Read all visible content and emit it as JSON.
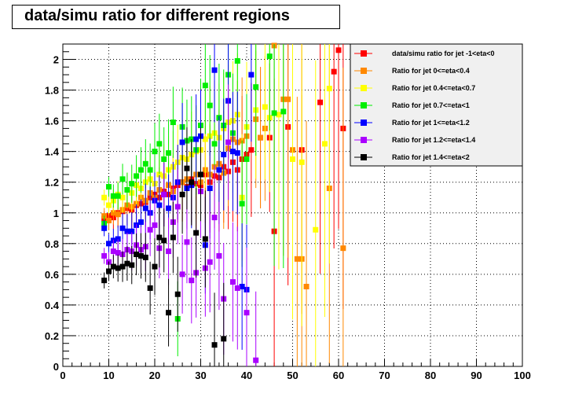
{
  "chart_data": {
    "type": "scatter",
    "title": "data/simu ratio for different regions",
    "xlabel": "",
    "ylabel": "",
    "xlim": [
      0,
      100
    ],
    "ylim": [
      0,
      2.1
    ],
    "x_ticks": [
      "0",
      "10",
      "20",
      "30",
      "40",
      "50",
      "60",
      "70",
      "80",
      "90",
      "100"
    ],
    "y_ticks": [
      "0",
      "0.2",
      "0.4",
      "0.6",
      "0.8",
      "1",
      "1.2",
      "1.4",
      "1.6",
      "1.8",
      "2"
    ],
    "grid": true,
    "legend_position": "top-right",
    "series": [
      {
        "name": "data/simu ratio for jet -1<eta<0",
        "color": "#ff0000",
        "points": [
          [
            9,
            0.96
          ],
          [
            10,
            0.98
          ],
          [
            11,
            0.97
          ],
          [
            12,
            1.0
          ],
          [
            13,
            1.01
          ],
          [
            14,
            1.03
          ],
          [
            15,
            1.02
          ],
          [
            16,
            1.05
          ],
          [
            17,
            1.06
          ],
          [
            18,
            1.07
          ],
          [
            19,
            1.1
          ],
          [
            20,
            1.12
          ],
          [
            21,
            1.1
          ],
          [
            22,
            1.14
          ],
          [
            23,
            1.12
          ],
          [
            24,
            1.16
          ],
          [
            25,
            1.18
          ],
          [
            26,
            1.2
          ],
          [
            27,
            1.17
          ],
          [
            28,
            1.22
          ],
          [
            29,
            1.19
          ],
          [
            30,
            1.18
          ],
          [
            31,
            1.25
          ],
          [
            32,
            1.2
          ],
          [
            33,
            1.24
          ],
          [
            34,
            1.23
          ],
          [
            35,
            1.3
          ],
          [
            36,
            1.27
          ],
          [
            37,
            1.33
          ],
          [
            38,
            1.28
          ],
          [
            39,
            1.35
          ],
          [
            40,
            1.38
          ],
          [
            41,
            1.41
          ],
          [
            43,
            1.49
          ],
          [
            45,
            1.49
          ],
          [
            46,
            0.88
          ],
          [
            49,
            1.56
          ],
          [
            52,
            1.41
          ],
          [
            56,
            1.72
          ],
          [
            59,
            1.92
          ],
          [
            60,
            2.06
          ],
          [
            61,
            1.55
          ]
        ]
      },
      {
        "name": "Ratio for jet 0<=eta<0.4",
        "color": "#ff8800",
        "points": [
          [
            9,
            0.98
          ],
          [
            10,
            0.95
          ],
          [
            11,
            1.0
          ],
          [
            12,
            0.99
          ],
          [
            13,
            1.02
          ],
          [
            14,
            1.05
          ],
          [
            15,
            1.04
          ],
          [
            16,
            1.06
          ],
          [
            17,
            1.1
          ],
          [
            18,
            1.08
          ],
          [
            19,
            1.13
          ],
          [
            20,
            1.1
          ],
          [
            21,
            1.15
          ],
          [
            22,
            1.12
          ],
          [
            23,
            1.18
          ],
          [
            24,
            1.14
          ],
          [
            25,
            1.2
          ],
          [
            26,
            1.2
          ],
          [
            27,
            1.22
          ],
          [
            28,
            1.19
          ],
          [
            29,
            1.25
          ],
          [
            30,
            1.2
          ],
          [
            31,
            1.28
          ],
          [
            32,
            1.25
          ],
          [
            33,
            1.3
          ],
          [
            34,
            1.32
          ],
          [
            35,
            1.26
          ],
          [
            36,
            1.42
          ],
          [
            37,
            1.48
          ],
          [
            38,
            1.46
          ],
          [
            39,
            1.47
          ],
          [
            40,
            1.5
          ],
          [
            42,
            1.61
          ],
          [
            43,
            1.49
          ],
          [
            44,
            1.55
          ],
          [
            46,
            2.09
          ],
          [
            48,
            1.74
          ],
          [
            49,
            1.74
          ],
          [
            50,
            1.41
          ],
          [
            51,
            0.7
          ],
          [
            52,
            0.7
          ],
          [
            53,
            0.52
          ],
          [
            58,
            1.16
          ],
          [
            61,
            0.77
          ]
        ]
      },
      {
        "name": "Ratio for jet 0.4<=eta<0.7",
        "color": "#ffff00",
        "points": [
          [
            9,
            1.1
          ],
          [
            10,
            1.05
          ],
          [
            11,
            1.08
          ],
          [
            12,
            1.12
          ],
          [
            13,
            1.1
          ],
          [
            14,
            1.15
          ],
          [
            15,
            1.13
          ],
          [
            16,
            1.18
          ],
          [
            17,
            1.16
          ],
          [
            18,
            1.2
          ],
          [
            19,
            1.22
          ],
          [
            20,
            1.19
          ],
          [
            21,
            1.25
          ],
          [
            22,
            1.24
          ],
          [
            23,
            1.28
          ],
          [
            24,
            1.3
          ],
          [
            25,
            1.33
          ],
          [
            26,
            1.36
          ],
          [
            27,
            1.35
          ],
          [
            28,
            1.38
          ],
          [
            29,
            1.4
          ],
          [
            30,
            1.41
          ],
          [
            31,
            1.48
          ],
          [
            32,
            1.5
          ],
          [
            33,
            1.52
          ],
          [
            34,
            1.49
          ],
          [
            35,
            1.55
          ],
          [
            36,
            1.59
          ],
          [
            37,
            1.6
          ],
          [
            38,
            1.64
          ],
          [
            39,
            1.1
          ],
          [
            40,
            1.56
          ],
          [
            42,
            1.67
          ],
          [
            44,
            1.69
          ],
          [
            45,
            1.62
          ],
          [
            47,
            1.64
          ],
          [
            50,
            1.35
          ],
          [
            52,
            1.33
          ],
          [
            55,
            0.89
          ],
          [
            57,
            1.45
          ],
          [
            58,
            1.81
          ]
        ]
      },
      {
        "name": "Ratio for jet 0.7<=eta<1",
        "color": "#00ee00",
        "points": [
          [
            9,
            0.93
          ],
          [
            10,
            1.17
          ],
          [
            11,
            1.11
          ],
          [
            12,
            1.11
          ],
          [
            13,
            1.22
          ],
          [
            14,
            1.15
          ],
          [
            15,
            1.19
          ],
          [
            16,
            1.24
          ],
          [
            17,
            1.28
          ],
          [
            18,
            1.32
          ],
          [
            19,
            1.28
          ],
          [
            20,
            1.4
          ],
          [
            21,
            1.45
          ],
          [
            22,
            1.35
          ],
          [
            23,
            1.39
          ],
          [
            24,
            1.59
          ],
          [
            25,
            0.31
          ],
          [
            26,
            1.56
          ],
          [
            27,
            1.47
          ],
          [
            28,
            1.48
          ],
          [
            29,
            1.41
          ],
          [
            30,
            1.57
          ],
          [
            31,
            1.83
          ],
          [
            32,
            1.7
          ],
          [
            33,
            1.45
          ],
          [
            34,
            1.62
          ],
          [
            35,
            1.57
          ],
          [
            36,
            1.9
          ],
          [
            37,
            1.52
          ],
          [
            38,
            1.99
          ],
          [
            39,
            1.06
          ],
          [
            40,
            1.35
          ],
          [
            42,
            1.82
          ],
          [
            45,
            2.02
          ],
          [
            46,
            1.65
          ],
          [
            48,
            1.66
          ]
        ]
      },
      {
        "name": "Ratio for jet 1<=eta<1.2",
        "color": "#0000ff",
        "points": [
          [
            9,
            0.9
          ],
          [
            10,
            0.8
          ],
          [
            11,
            0.82
          ],
          [
            12,
            0.83
          ],
          [
            13,
            0.9
          ],
          [
            14,
            0.88
          ],
          [
            15,
            0.88
          ],
          [
            16,
            0.92
          ],
          [
            17,
            0.94
          ],
          [
            18,
            1.03
          ],
          [
            19,
            1.0
          ],
          [
            20,
            1.08
          ],
          [
            21,
            1.05
          ],
          [
            22,
            1.12
          ],
          [
            23,
            1.03
          ],
          [
            24,
            1.1
          ],
          [
            25,
            1.2
          ],
          [
            26,
            1.46
          ],
          [
            27,
            1.16
          ],
          [
            28,
            1.18
          ],
          [
            29,
            1.48
          ],
          [
            30,
            1.5
          ],
          [
            31,
            0.79
          ],
          [
            32,
            1.16
          ],
          [
            33,
            1.93
          ],
          [
            34,
            1.28
          ],
          [
            35,
            1.38
          ],
          [
            36,
            1.73
          ],
          [
            37,
            1.4
          ],
          [
            38,
            1.39
          ],
          [
            39,
            0.52
          ],
          [
            40,
            0.5
          ],
          [
            41,
            1.9
          ]
        ]
      },
      {
        "name": "Ratio for jet 1.2<=eta<1.4",
        "color": "#aa00ff",
        "points": [
          [
            9,
            0.72
          ],
          [
            10,
            0.68
          ],
          [
            11,
            0.75
          ],
          [
            12,
            0.74
          ],
          [
            13,
            0.73
          ],
          [
            14,
            0.76
          ],
          [
            15,
            0.75
          ],
          [
            16,
            0.79
          ],
          [
            17,
            0.76
          ],
          [
            18,
            0.78
          ],
          [
            19,
            0.89
          ],
          [
            20,
            0.92
          ],
          [
            21,
            0.77
          ],
          [
            22,
            1.12
          ],
          [
            23,
            0.75
          ],
          [
            24,
            0.94
          ],
          [
            25,
            1.04
          ],
          [
            26,
            0.6
          ],
          [
            27,
            0.81
          ],
          [
            28,
            0.56
          ],
          [
            29,
            0.61
          ],
          [
            30,
            1.14
          ],
          [
            31,
            0.64
          ],
          [
            32,
            0.68
          ],
          [
            33,
            0.97
          ],
          [
            34,
            0.72
          ],
          [
            35,
            0.44
          ],
          [
            36,
            1.46
          ],
          [
            37,
            0.55
          ],
          [
            38,
            0.51
          ],
          [
            40,
            0.35
          ],
          [
            42,
            0.04
          ]
        ]
      },
      {
        "name": "Ratio for jet 1.4<=eta<2",
        "color": "#000000",
        "points": [
          [
            9,
            0.56
          ],
          [
            10,
            0.62
          ],
          [
            11,
            0.65
          ],
          [
            12,
            0.64
          ],
          [
            13,
            0.65
          ],
          [
            14,
            0.67
          ],
          [
            15,
            0.66
          ],
          [
            16,
            0.73
          ],
          [
            17,
            0.72
          ],
          [
            18,
            0.71
          ],
          [
            19,
            0.51
          ],
          [
            20,
            0.65
          ],
          [
            21,
            0.84
          ],
          [
            22,
            0.82
          ],
          [
            23,
            0.35
          ],
          [
            24,
            0.84
          ],
          [
            25,
            0.47
          ],
          [
            26,
            1.12
          ],
          [
            27,
            1.29
          ],
          [
            28,
            1.2
          ],
          [
            29,
            0.87
          ],
          [
            30,
            1.25
          ],
          [
            31,
            0.83
          ],
          [
            33,
            0.14
          ],
          [
            35,
            0.18
          ]
        ]
      }
    ]
  }
}
